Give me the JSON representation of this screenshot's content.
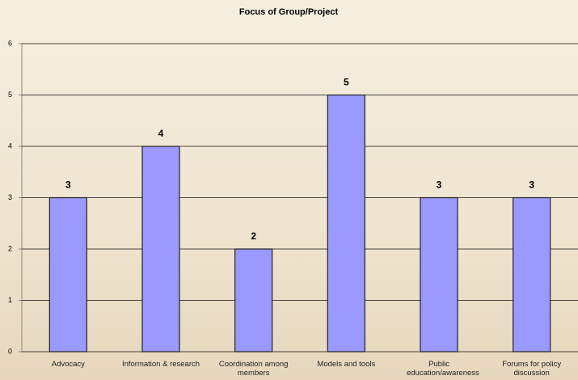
{
  "chart_data": {
    "type": "bar",
    "title": "Focus of Group/Project",
    "categories": [
      "Advocacy",
      "Information & research",
      "Coordination among members",
      "Models and tools",
      "Public education/awareness",
      "Forums for policy discussion"
    ],
    "values": [
      3,
      4,
      2,
      5,
      3,
      3
    ],
    "color": "#9999ff",
    "ylim": [
      0,
      6
    ],
    "yticks": [
      0,
      1,
      2,
      3,
      4,
      5,
      6
    ],
    "grid": true
  }
}
